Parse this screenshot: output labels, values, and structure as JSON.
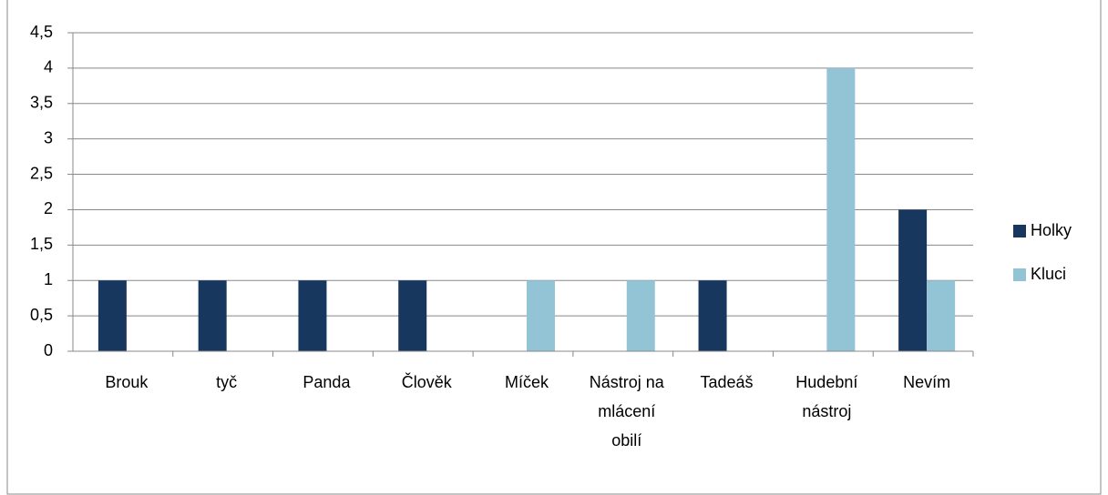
{
  "chart_data": {
    "type": "bar",
    "categories": [
      "Brouk",
      "tyč",
      "Panda",
      "Člověk",
      "Míček",
      "Nástroj na mlácení obilí",
      "Tadeáš",
      "Hudební nástroj",
      "Nevím"
    ],
    "series": [
      {
        "name": "Holky",
        "color": "#17375e",
        "values": [
          1,
          1,
          1,
          1,
          0,
          0,
          1,
          0,
          2
        ]
      },
      {
        "name": "Kluci",
        "color": "#93c4d6",
        "values": [
          0,
          0,
          0,
          0,
          1,
          1,
          0,
          4,
          1
        ]
      }
    ],
    "ylim": [
      0,
      4.5
    ],
    "yticks": [
      0,
      {
        "value": 0.5,
        "label": "0,5"
      },
      1,
      {
        "value": 1.5,
        "label": "1,5"
      },
      2,
      {
        "value": 2.5,
        "label": "2,5"
      },
      3,
      {
        "value": 3.5,
        "label": "3,5"
      },
      4,
      {
        "value": 4.5,
        "label": "4,5"
      }
    ],
    "grid": true,
    "legend": "right"
  }
}
